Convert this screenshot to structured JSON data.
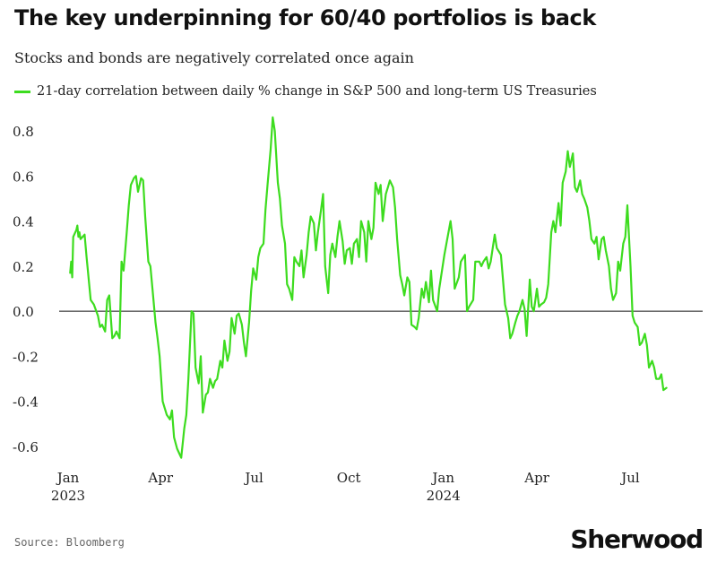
{
  "header": {
    "title": "The key underpinning for 60/40 portfolios is back",
    "subtitle": "Stocks and bonds are negatively correlated once again"
  },
  "footer": {
    "source": "Source: Bloomberg",
    "brand": "Sherwood"
  },
  "colors": {
    "series": "#3ddc1f",
    "zero_line": "#111111",
    "text": "#222222"
  },
  "chart_data": {
    "type": "line",
    "title": "The key underpinning for 60/40 portfolios is back",
    "subtitle": "Stocks and bonds are negatively correlated once again",
    "xlabel": "",
    "ylabel": "",
    "ylim": [
      -0.65,
      0.86
    ],
    "xlim": [
      "2023-01-01",
      "2024-08-28"
    ],
    "grid": false,
    "legend_position": "top-left",
    "y_ticks": [
      0.8,
      0.6,
      0.4,
      0.2,
      0.0,
      -0.2,
      -0.4,
      -0.6
    ],
    "y_tick_labels": [
      "0.8",
      "0.6",
      "0.4",
      "0.2",
      "0.0",
      "-0.2",
      "-0.4",
      "-0.6"
    ],
    "x_ticks": [
      {
        "date": "2023-01-01",
        "label": "Jan",
        "year": "2023"
      },
      {
        "date": "2023-04-01",
        "label": "Apr",
        "year": ""
      },
      {
        "date": "2023-07-01",
        "label": "Jul",
        "year": ""
      },
      {
        "date": "2023-10-01",
        "label": "Oct",
        "year": ""
      },
      {
        "date": "2024-01-01",
        "label": "Jan",
        "year": "2024"
      },
      {
        "date": "2024-04-01",
        "label": "Apr",
        "year": ""
      },
      {
        "date": "2024-07-01",
        "label": "Jul",
        "year": ""
      }
    ],
    "series": [
      {
        "name": "21-day correlation between daily % change in S&P 500 and long-term US Treasuries",
        "points": [
          [
            "2023-01-03",
            0.17
          ],
          [
            "2023-01-04",
            0.22
          ],
          [
            "2023-01-05",
            0.15
          ],
          [
            "2023-01-06",
            0.33
          ],
          [
            "2023-01-09",
            0.36
          ],
          [
            "2023-01-10",
            0.38
          ],
          [
            "2023-01-11",
            0.33
          ],
          [
            "2023-01-12",
            0.35
          ],
          [
            "2023-01-13",
            0.32
          ],
          [
            "2023-01-17",
            0.34
          ],
          [
            "2023-01-19",
            0.24
          ],
          [
            "2023-01-23",
            0.05
          ],
          [
            "2023-01-26",
            0.03
          ],
          [
            "2023-01-30",
            -0.02
          ],
          [
            "2023-02-01",
            -0.07
          ],
          [
            "2023-02-03",
            -0.06
          ],
          [
            "2023-02-06",
            -0.09
          ],
          [
            "2023-02-08",
            0.05
          ],
          [
            "2023-02-10",
            0.07
          ],
          [
            "2023-02-13",
            -0.12
          ],
          [
            "2023-02-15",
            -0.11
          ],
          [
            "2023-02-17",
            -0.09
          ],
          [
            "2023-02-20",
            -0.12
          ],
          [
            "2023-02-22",
            0.22
          ],
          [
            "2023-02-24",
            0.18
          ],
          [
            "2023-02-27",
            0.35
          ],
          [
            "2023-03-01",
            0.47
          ],
          [
            "2023-03-03",
            0.56
          ],
          [
            "2023-03-06",
            0.59
          ],
          [
            "2023-03-08",
            0.6
          ],
          [
            "2023-03-10",
            0.53
          ],
          [
            "2023-03-13",
            0.59
          ],
          [
            "2023-03-15",
            0.58
          ],
          [
            "2023-03-17",
            0.42
          ],
          [
            "2023-03-20",
            0.22
          ],
          [
            "2023-03-22",
            0.2
          ],
          [
            "2023-03-24",
            0.1
          ],
          [
            "2023-03-27",
            -0.05
          ],
          [
            "2023-03-29",
            -0.12
          ],
          [
            "2023-03-31",
            -0.2
          ],
          [
            "2023-04-03",
            -0.4
          ],
          [
            "2023-04-05",
            -0.43
          ],
          [
            "2023-04-07",
            -0.46
          ],
          [
            "2023-04-10",
            -0.48
          ],
          [
            "2023-04-12",
            -0.44
          ],
          [
            "2023-04-14",
            -0.56
          ],
          [
            "2023-04-17",
            -0.61
          ],
          [
            "2023-04-19",
            -0.63
          ],
          [
            "2023-04-21",
            -0.65
          ],
          [
            "2023-04-24",
            -0.52
          ],
          [
            "2023-04-26",
            -0.46
          ],
          [
            "2023-04-28",
            -0.3
          ],
          [
            "2023-05-01",
            0.0
          ],
          [
            "2023-05-03",
            -0.01
          ],
          [
            "2023-05-05",
            -0.25
          ],
          [
            "2023-05-08",
            -0.32
          ],
          [
            "2023-05-10",
            -0.2
          ],
          [
            "2023-05-12",
            -0.45
          ],
          [
            "2023-05-15",
            -0.37
          ],
          [
            "2023-05-17",
            -0.36
          ],
          [
            "2023-05-19",
            -0.3
          ],
          [
            "2023-05-22",
            -0.34
          ],
          [
            "2023-05-24",
            -0.31
          ],
          [
            "2023-05-26",
            -0.3
          ],
          [
            "2023-05-29",
            -0.22
          ],
          [
            "2023-05-31",
            -0.25
          ],
          [
            "2023-06-02",
            -0.13
          ],
          [
            "2023-06-05",
            -0.22
          ],
          [
            "2023-06-07",
            -0.18
          ],
          [
            "2023-06-09",
            -0.03
          ],
          [
            "2023-06-12",
            -0.1
          ],
          [
            "2023-06-14",
            -0.02
          ],
          [
            "2023-06-16",
            -0.01
          ],
          [
            "2023-06-19",
            -0.06
          ],
          [
            "2023-06-21",
            -0.14
          ],
          [
            "2023-06-23",
            -0.2
          ],
          [
            "2023-06-26",
            -0.05
          ],
          [
            "2023-06-28",
            0.09
          ],
          [
            "2023-06-30",
            0.19
          ],
          [
            "2023-07-03",
            0.14
          ],
          [
            "2023-07-05",
            0.24
          ],
          [
            "2023-07-07",
            0.28
          ],
          [
            "2023-07-10",
            0.3
          ],
          [
            "2023-07-12",
            0.45
          ],
          [
            "2023-07-14",
            0.56
          ],
          [
            "2023-07-17",
            0.72
          ],
          [
            "2023-07-19",
            0.86
          ],
          [
            "2023-07-21",
            0.8
          ],
          [
            "2023-07-24",
            0.57
          ],
          [
            "2023-07-26",
            0.5
          ],
          [
            "2023-07-28",
            0.38
          ],
          [
            "2023-07-31",
            0.3
          ],
          [
            "2023-08-02",
            0.12
          ],
          [
            "2023-08-04",
            0.1
          ],
          [
            "2023-08-07",
            0.05
          ],
          [
            "2023-08-09",
            0.24
          ],
          [
            "2023-08-11",
            0.22
          ],
          [
            "2023-08-14",
            0.2
          ],
          [
            "2023-08-16",
            0.27
          ],
          [
            "2023-08-18",
            0.15
          ],
          [
            "2023-08-21",
            0.25
          ],
          [
            "2023-08-23",
            0.35
          ],
          [
            "2023-08-25",
            0.42
          ],
          [
            "2023-08-28",
            0.39
          ],
          [
            "2023-08-30",
            0.27
          ],
          [
            "2023-09-01",
            0.35
          ],
          [
            "2023-09-04",
            0.45
          ],
          [
            "2023-09-06",
            0.52
          ],
          [
            "2023-09-08",
            0.2
          ],
          [
            "2023-09-11",
            0.08
          ],
          [
            "2023-09-13",
            0.25
          ],
          [
            "2023-09-15",
            0.3
          ],
          [
            "2023-09-18",
            0.24
          ],
          [
            "2023-09-20",
            0.33
          ],
          [
            "2023-09-22",
            0.4
          ],
          [
            "2023-09-25",
            0.31
          ],
          [
            "2023-09-27",
            0.21
          ],
          [
            "2023-09-29",
            0.27
          ],
          [
            "2023-10-02",
            0.28
          ],
          [
            "2023-10-04",
            0.21
          ],
          [
            "2023-10-06",
            0.3
          ],
          [
            "2023-10-09",
            0.32
          ],
          [
            "2023-10-11",
            0.24
          ],
          [
            "2023-10-13",
            0.4
          ],
          [
            "2023-10-16",
            0.35
          ],
          [
            "2023-10-18",
            0.22
          ],
          [
            "2023-10-20",
            0.4
          ],
          [
            "2023-10-23",
            0.32
          ],
          [
            "2023-10-25",
            0.37
          ],
          [
            "2023-10-27",
            0.57
          ],
          [
            "2023-10-30",
            0.52
          ],
          [
            "2023-11-01",
            0.56
          ],
          [
            "2023-11-03",
            0.4
          ],
          [
            "2023-11-06",
            0.52
          ],
          [
            "2023-11-08",
            0.55
          ],
          [
            "2023-11-10",
            0.58
          ],
          [
            "2023-11-13",
            0.55
          ],
          [
            "2023-11-15",
            0.46
          ],
          [
            "2023-11-17",
            0.32
          ],
          [
            "2023-11-20",
            0.16
          ],
          [
            "2023-11-22",
            0.12
          ],
          [
            "2023-11-24",
            0.07
          ],
          [
            "2023-11-27",
            0.15
          ],
          [
            "2023-11-29",
            0.13
          ],
          [
            "2023-12-01",
            -0.06
          ],
          [
            "2023-12-04",
            -0.07
          ],
          [
            "2023-12-06",
            -0.08
          ],
          [
            "2023-12-08",
            -0.03
          ],
          [
            "2023-12-11",
            0.1
          ],
          [
            "2023-12-13",
            0.06
          ],
          [
            "2023-12-15",
            0.13
          ],
          [
            "2023-12-18",
            0.04
          ],
          [
            "2023-12-20",
            0.18
          ],
          [
            "2023-12-22",
            0.05
          ],
          [
            "2023-12-26",
            0.0
          ],
          [
            "2023-12-28",
            0.1
          ],
          [
            "2024-01-02",
            0.25
          ],
          [
            "2024-01-04",
            0.3
          ],
          [
            "2024-01-08",
            0.4
          ],
          [
            "2024-01-10",
            0.32
          ],
          [
            "2024-01-12",
            0.1
          ],
          [
            "2024-01-16",
            0.15
          ],
          [
            "2024-01-18",
            0.22
          ],
          [
            "2024-01-22",
            0.25
          ],
          [
            "2024-01-24",
            0.0
          ],
          [
            "2024-01-26",
            0.02
          ],
          [
            "2024-01-30",
            0.05
          ],
          [
            "2024-02-01",
            0.22
          ],
          [
            "2024-02-05",
            0.22
          ],
          [
            "2024-02-07",
            0.2
          ],
          [
            "2024-02-09",
            0.22
          ],
          [
            "2024-02-12",
            0.24
          ],
          [
            "2024-02-14",
            0.19
          ],
          [
            "2024-02-16",
            0.22
          ],
          [
            "2024-02-20",
            0.34
          ],
          [
            "2024-02-22",
            0.28
          ],
          [
            "2024-02-26",
            0.25
          ],
          [
            "2024-02-28",
            0.14
          ],
          [
            "2024-03-01",
            0.03
          ],
          [
            "2024-03-04",
            -0.03
          ],
          [
            "2024-03-06",
            -0.12
          ],
          [
            "2024-03-08",
            -0.1
          ],
          [
            "2024-03-11",
            -0.05
          ],
          [
            "2024-03-13",
            -0.02
          ],
          [
            "2024-03-15",
            0.0
          ],
          [
            "2024-03-18",
            0.05
          ],
          [
            "2024-03-20",
            0.01
          ],
          [
            "2024-03-22",
            -0.11
          ],
          [
            "2024-03-25",
            0.14
          ],
          [
            "2024-03-27",
            0.02
          ],
          [
            "2024-03-29",
            0.0
          ],
          [
            "2024-04-01",
            0.1
          ],
          [
            "2024-04-03",
            0.02
          ],
          [
            "2024-04-05",
            0.03
          ],
          [
            "2024-04-08",
            0.04
          ],
          [
            "2024-04-10",
            0.06
          ],
          [
            "2024-04-12",
            0.12
          ],
          [
            "2024-04-15",
            0.35
          ],
          [
            "2024-04-17",
            0.4
          ],
          [
            "2024-04-19",
            0.35
          ],
          [
            "2024-04-22",
            0.48
          ],
          [
            "2024-04-24",
            0.38
          ],
          [
            "2024-04-26",
            0.57
          ],
          [
            "2024-04-29",
            0.62
          ],
          [
            "2024-05-01",
            0.71
          ],
          [
            "2024-05-03",
            0.64
          ],
          [
            "2024-05-06",
            0.7
          ],
          [
            "2024-05-08",
            0.55
          ],
          [
            "2024-05-10",
            0.53
          ],
          [
            "2024-05-13",
            0.58
          ],
          [
            "2024-05-15",
            0.52
          ],
          [
            "2024-05-17",
            0.5
          ],
          [
            "2024-05-20",
            0.46
          ],
          [
            "2024-05-22",
            0.4
          ],
          [
            "2024-05-24",
            0.32
          ],
          [
            "2024-05-27",
            0.3
          ],
          [
            "2024-05-29",
            0.33
          ],
          [
            "2024-05-31",
            0.23
          ],
          [
            "2024-06-03",
            0.32
          ],
          [
            "2024-06-05",
            0.33
          ],
          [
            "2024-06-07",
            0.27
          ],
          [
            "2024-06-10",
            0.2
          ],
          [
            "2024-06-12",
            0.1
          ],
          [
            "2024-06-14",
            0.05
          ],
          [
            "2024-06-17",
            0.08
          ],
          [
            "2024-06-19",
            0.22
          ],
          [
            "2024-06-21",
            0.18
          ],
          [
            "2024-06-24",
            0.3
          ],
          [
            "2024-06-26",
            0.33
          ],
          [
            "2024-06-28",
            0.47
          ],
          [
            "2024-07-01",
            0.2
          ],
          [
            "2024-07-03",
            -0.02
          ],
          [
            "2024-07-05",
            -0.05
          ],
          [
            "2024-07-08",
            -0.07
          ],
          [
            "2024-07-10",
            -0.15
          ],
          [
            "2024-07-12",
            -0.14
          ],
          [
            "2024-07-15",
            -0.1
          ],
          [
            "2024-07-17",
            -0.15
          ],
          [
            "2024-07-19",
            -0.25
          ],
          [
            "2024-07-22",
            -0.22
          ],
          [
            "2024-07-24",
            -0.25
          ],
          [
            "2024-07-26",
            -0.3
          ],
          [
            "2024-07-29",
            -0.3
          ],
          [
            "2024-07-31",
            -0.28
          ],
          [
            "2024-08-02",
            -0.35
          ],
          [
            "2024-08-05",
            -0.34
          ]
        ]
      }
    ]
  }
}
